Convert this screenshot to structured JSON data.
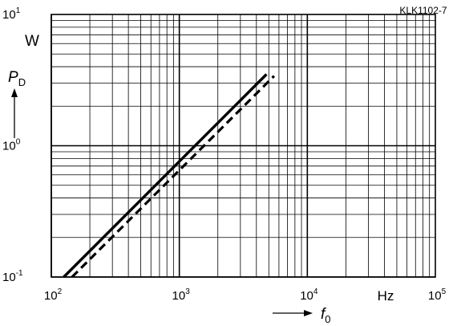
{
  "figure_id": "KLK1102-7",
  "chart_data": {
    "type": "line",
    "x_scale": "log",
    "y_scale": "log",
    "xlim": [
      100,
      100000
    ],
    "ylim": [
      0.1,
      10
    ],
    "grid": true,
    "x_ticks": [
      {
        "value": 100,
        "base": "10",
        "exp": "2"
      },
      {
        "value": 1000,
        "base": "10",
        "exp": "3"
      },
      {
        "value": 10000,
        "base": "10",
        "exp": "4"
      },
      {
        "value": 100000,
        "base": "10",
        "exp": "5"
      }
    ],
    "y_ticks": [
      {
        "value": 0.1,
        "base": "10",
        "exp": "-1"
      },
      {
        "value": 1,
        "base": "10",
        "exp": "0"
      },
      {
        "value": 10,
        "base": "10",
        "exp": "1"
      }
    ],
    "x_unit": "Hz",
    "y_unit": "W",
    "x_label": {
      "symbol": "f",
      "sub": "0"
    },
    "y_label": {
      "symbol": "P",
      "sub": "D"
    },
    "series": [
      {
        "style": "solid",
        "color": "#000000",
        "x": [
          125,
          4800
        ],
        "y": [
          0.1,
          3.5
        ]
      },
      {
        "style": "dashed",
        "color": "#000000",
        "x": [
          145,
          5500
        ],
        "y": [
          0.1,
          3.4
        ]
      }
    ]
  }
}
